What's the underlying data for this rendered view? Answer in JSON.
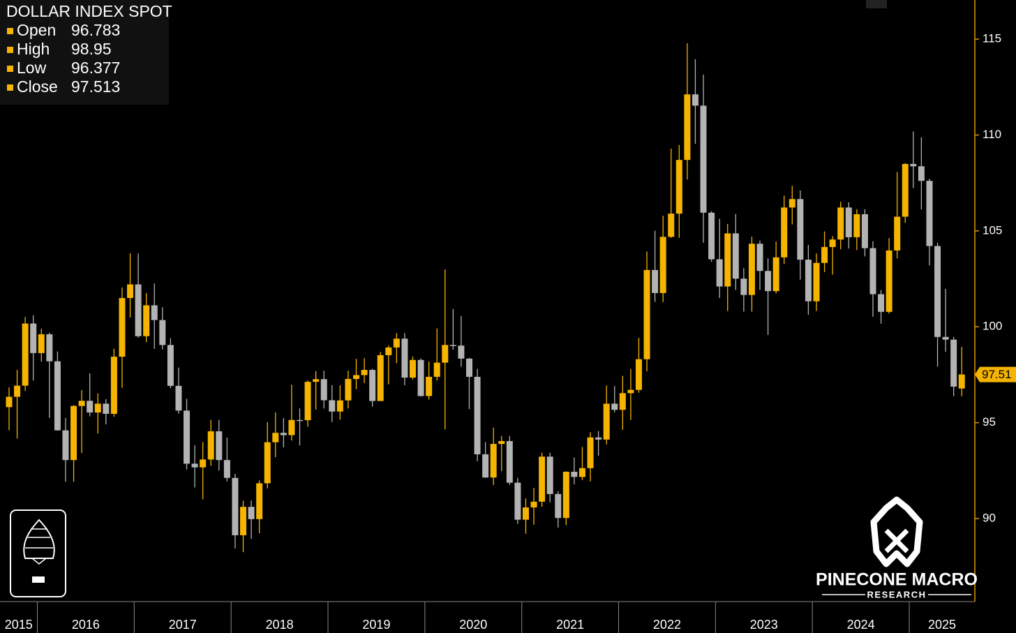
{
  "chart_data": {
    "type": "candlestick",
    "title": "DOLLAR INDEX SPOT",
    "legend_labels": [
      "Open",
      "High",
      "Low",
      "Close"
    ],
    "last_price_label": "97.51",
    "up_color": "#f5b400",
    "down_color": "#b3b3b3",
    "ylim": [
      85.67,
      117.04
    ],
    "yticks": [
      90,
      95,
      100,
      105,
      110,
      115
    ],
    "categories": [
      "2015",
      null,
      null,
      null,
      "2016",
      null,
      null,
      null,
      null,
      null,
      null,
      null,
      null,
      null,
      null,
      null,
      "2017",
      null,
      null,
      null,
      null,
      null,
      null,
      null,
      null,
      null,
      null,
      null,
      "2018",
      null,
      null,
      null,
      null,
      null,
      null,
      null,
      null,
      null,
      null,
      null,
      "2019",
      null,
      null,
      null,
      null,
      null,
      null,
      null,
      null,
      null,
      null,
      null,
      "2020",
      null,
      null,
      null,
      null,
      null,
      null,
      null,
      null,
      null,
      null,
      null,
      "2021",
      null,
      null,
      null,
      null,
      null,
      null,
      null,
      null,
      null,
      null,
      null,
      "2022",
      null,
      null,
      null,
      null,
      null,
      null,
      null,
      null,
      null,
      null,
      null,
      "2023",
      null,
      null,
      null,
      null,
      null,
      null,
      null,
      null,
      null,
      null,
      null,
      "2024",
      null,
      null,
      null,
      null,
      null,
      null,
      null,
      null,
      null,
      null,
      null,
      "2025",
      null,
      null,
      null,
      null,
      null,
      null
    ],
    "open": [
      95.81,
      96.35,
      96.93,
      100.17,
      98.63,
      99.61,
      98.2,
      94.6,
      93.05,
      95.87,
      96.14,
      95.53,
      95.99,
      95.46,
      98.44,
      101.5,
      102.21,
      99.51,
      101.12,
      100.35,
      99.05,
      96.92,
      95.63,
      92.86,
      92.67,
      93.08,
      94.55,
      93.05,
      92.12,
      89.13,
      90.61,
      89.97,
      91.84,
      93.98,
      94.47,
      94.35,
      95.14,
      95.13,
      97.13,
      97.27,
      96.17,
      95.58,
      96.16,
      97.28,
      97.48,
      97.75,
      96.13,
      98.52,
      98.92,
      99.38,
      97.35,
      98.27,
      96.39,
      97.39,
      98.13,
      99.05,
      99.02,
      98.34,
      97.39,
      93.35,
      92.14,
      93.89,
      94.04,
      91.87,
      89.94,
      90.58,
      90.88,
      93.23,
      91.28,
      90.03,
      92.44,
      92.17,
      92.63,
      94.23,
      94.12,
      95.99,
      95.67,
      96.54,
      96.71,
      98.31,
      102.96,
      101.76,
      104.69,
      105.9,
      108.7,
      112.12,
      111.53,
      105.95,
      103.52,
      102.1,
      104.87,
      102.51,
      101.66,
      104.33,
      102.91,
      101.86,
      103.62,
      106.22,
      106.66,
      103.5,
      101.33,
      103.33,
      104.16,
      104.55,
      106.22,
      104.67,
      105.87,
      104.1,
      101.7,
      100.78,
      103.98,
      105.74,
      108.49,
      108.37,
      107.61,
      104.21,
      99.47,
      99.33,
      96.783
    ],
    "high": [
      96.84,
      97.75,
      100.51,
      100.6,
      99.9,
      99.69,
      98.71,
      95.25,
      95.92,
      96.7,
      97.57,
      96.53,
      96.23,
      98.86,
      102.05,
      103.82,
      103.82,
      101.76,
      102.26,
      101.02,
      99.4,
      97.87,
      96.24,
      93.82,
      93.99,
      95.15,
      95.15,
      94.22,
      92.33,
      90.93,
      90.94,
      91.99,
      95.03,
      95.53,
      95.24,
      96.98,
      95.74,
      97.2,
      97.69,
      97.71,
      96.96,
      96.95,
      97.71,
      98.33,
      98.37,
      97.81,
      98.69,
      99.02,
      99.67,
      99.67,
      98.45,
      98.35,
      98.19,
      99.91,
      102.99,
      100.93,
      100.56,
      98.37,
      97.8,
      93.99,
      94.74,
      94.31,
      94.3,
      92.12,
      91.05,
      91.6,
      93.44,
      93.44,
      91.43,
      92.46,
      93.19,
      93.73,
      94.5,
      94.56,
      96.94,
      96.91,
      97.44,
      97.8,
      99.42,
      103.93,
      105.01,
      105.79,
      109.29,
      109.48,
      114.78,
      113.95,
      113.15,
      106.02,
      105.63,
      105.36,
      105.88,
      103.06,
      104.7,
      104.49,
      103.57,
      104.44,
      106.84,
      107.35,
      107.11,
      104.27,
      103.82,
      104.97,
      104.73,
      106.52,
      106.49,
      106.13,
      106.13,
      104.46,
      101.92,
      104.63,
      108.07,
      108.54,
      110.18,
      109.88,
      107.72,
      104.38,
      101.98,
      99.47,
      98.95
    ],
    "low": [
      94.61,
      94.17,
      96.65,
      97.2,
      98.18,
      95.25,
      94.58,
      91.92,
      91.92,
      93.42,
      95.33,
      94.43,
      94.91,
      95.31,
      96.82,
      100.48,
      99.43,
      99.2,
      98.85,
      98.82,
      96.8,
      95.47,
      92.56,
      91.62,
      91.01,
      92.75,
      92.5,
      91.94,
      88.44,
      88.25,
      88.94,
      89.23,
      91.57,
      93.2,
      93.71,
      94.07,
      93.81,
      94.79,
      95.68,
      95.74,
      95.03,
      95.16,
      95.74,
      96.75,
      97.07,
      95.84,
      96.13,
      97.0,
      98.1,
      96.95,
      97.25,
      96.36,
      96.21,
      97.2,
      94.65,
      98.81,
      97.92,
      95.71,
      92.99,
      92.12,
      91.75,
      92.47,
      91.76,
      89.72,
      89.21,
      89.68,
      90.62,
      90.85,
      89.53,
      89.66,
      91.78,
      92.0,
      91.94,
      93.28,
      93.87,
      95.54,
      94.63,
      95.14,
      96.56,
      97.68,
      101.3,
      101.29,
      104.63,
      104.64,
      107.68,
      109.54,
      104.38,
      103.39,
      101.5,
      100.82,
      101.92,
      100.79,
      100.79,
      101.92,
      99.58,
      101.74,
      103.27,
      105.34,
      102.46,
      100.62,
      100.82,
      102.85,
      102.72,
      104.04,
      104.08,
      104.0,
      103.67,
      100.52,
      100.16,
      100.69,
      103.57,
      105.42,
      107.23,
      106.12,
      103.2,
      97.92,
      98.69,
      96.38,
      96.377
    ],
    "close": [
      96.35,
      96.93,
      100.17,
      98.63,
      99.61,
      98.2,
      94.6,
      93.05,
      95.87,
      96.14,
      95.53,
      95.99,
      95.46,
      98.44,
      101.5,
      102.21,
      99.51,
      101.12,
      100.35,
      99.05,
      96.92,
      95.63,
      92.86,
      92.67,
      93.08,
      94.55,
      93.05,
      92.12,
      89.13,
      90.61,
      89.97,
      91.84,
      93.98,
      94.47,
      94.35,
      95.14,
      95.13,
      97.13,
      97.27,
      96.17,
      95.58,
      96.16,
      97.28,
      97.48,
      97.75,
      96.13,
      98.52,
      98.92,
      99.38,
      97.35,
      98.27,
      96.39,
      97.39,
      98.13,
      99.05,
      99.02,
      98.34,
      97.39,
      93.35,
      92.14,
      93.89,
      94.04,
      91.87,
      89.94,
      90.58,
      90.88,
      93.23,
      91.28,
      90.03,
      92.44,
      92.17,
      92.63,
      94.23,
      94.12,
      95.99,
      95.67,
      96.54,
      96.71,
      98.31,
      102.96,
      101.76,
      104.69,
      105.9,
      108.7,
      112.12,
      111.53,
      105.95,
      103.52,
      102.1,
      104.87,
      102.51,
      101.66,
      104.33,
      102.91,
      101.86,
      103.62,
      106.22,
      106.66,
      103.5,
      101.33,
      103.33,
      104.16,
      104.55,
      106.22,
      104.67,
      105.87,
      104.1,
      101.7,
      100.78,
      103.98,
      105.74,
      108.49,
      108.37,
      107.61,
      104.21,
      99.47,
      99.33,
      96.88,
      97.513
    ]
  },
  "brand": {
    "name": "PINECONE MACRO",
    "tagline": "RESEARCH"
  }
}
